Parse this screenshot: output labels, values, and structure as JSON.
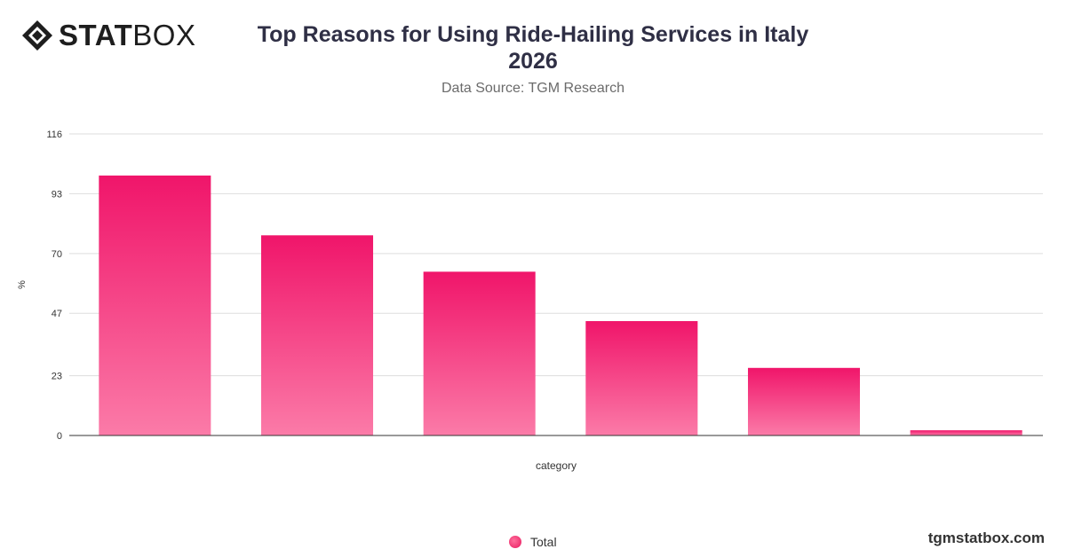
{
  "brand": {
    "logo_bold": "STAT",
    "logo_light": "BOX",
    "watermark": "tgmstatbox.com"
  },
  "header": {
    "title_line1": "Top Reasons for Using Ride-Hailing Services in Italy",
    "title_line2": "2026",
    "subtitle": "Data Source: TGM Research"
  },
  "colors": {
    "bar_top": "#f0156a",
    "bar_bottom": "#fb7ba8",
    "grid": "#dddddd",
    "axis": "#333333"
  },
  "chart_data": {
    "type": "bar",
    "title": "Top Reasons for Using Ride-Hailing Services in Italy 2026",
    "subtitle": "Data Source: TGM Research",
    "xlabel": "category",
    "ylabel": "%",
    "categories": [
      "",
      "",
      "",
      "",
      "",
      ""
    ],
    "series": [
      {
        "name": "Total",
        "values": [
          100,
          77,
          63,
          44,
          26,
          2
        ]
      }
    ],
    "yticks": [
      0,
      23,
      47,
      70,
      93,
      116
    ],
    "ylim": [
      0,
      116
    ],
    "grid": true,
    "legend_position": "bottom"
  }
}
